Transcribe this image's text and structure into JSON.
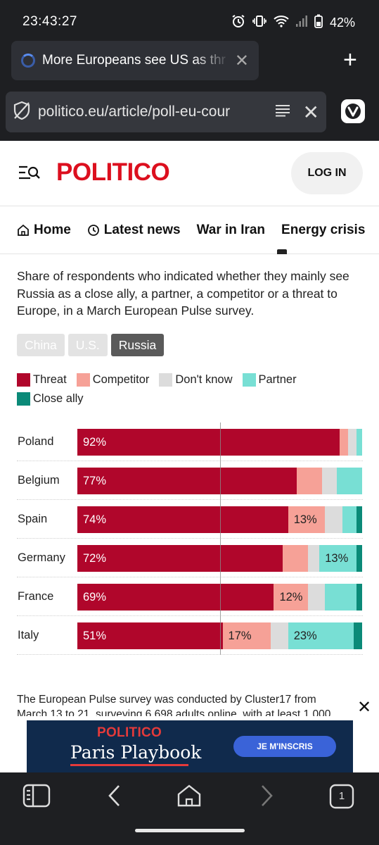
{
  "status_bar": {
    "time": "23:43:27",
    "battery": "42%"
  },
  "browser": {
    "tab_title": "More Europeans see US as thr",
    "url": "politico.eu/article/poll-eu-cour"
  },
  "site": {
    "logo": "POLITICO",
    "login": "LOG IN"
  },
  "nav": [
    {
      "label": "Home"
    },
    {
      "label": "Latest news"
    },
    {
      "label": "War in Iran"
    },
    {
      "label": "Energy crisis"
    }
  ],
  "chart_description": "Share of respondents who indicated whether they mainly see Russia as a close ally, a partner, a competitor or a threat to Europe, in a March European Pulse survey.",
  "filters": [
    {
      "label": "China",
      "active": false
    },
    {
      "label": "U.S.",
      "active": false
    },
    {
      "label": "Russia",
      "active": true
    }
  ],
  "colors": {
    "threat": "#b0062b",
    "competitor": "#f6a197",
    "dont_know": "#dcdcdc",
    "partner": "#78dfd4",
    "close_ally": "#0b8a78",
    "politico_red": "#dc0f1e"
  },
  "chart_data": {
    "type": "bar",
    "orientation": "horizontal",
    "stacked": true,
    "categories": [
      "Poland",
      "Belgium",
      "Spain",
      "Germany",
      "France",
      "Italy"
    ],
    "xlim": [
      0,
      100
    ],
    "reference_line": 50,
    "legend": [
      "Threat",
      "Competitor",
      "Don't know",
      "Partner",
      "Close ally"
    ],
    "series": [
      {
        "name": "Threat",
        "color_key": "threat",
        "values": [
          92,
          77,
          74,
          72,
          69,
          51
        ],
        "labels": [
          "92%",
          "77%",
          "74%",
          "72%",
          "69%",
          "51%"
        ]
      },
      {
        "name": "Competitor",
        "color_key": "competitor",
        "values": [
          3,
          9,
          13,
          9,
          12,
          17
        ],
        "labels": [
          "",
          "",
          "13%",
          "",
          "12%",
          "17%"
        ]
      },
      {
        "name": "Don't know",
        "color_key": "dont_know",
        "values": [
          3,
          5,
          6,
          4,
          6,
          6
        ],
        "labels": [
          "",
          "",
          "",
          "",
          "",
          ""
        ]
      },
      {
        "name": "Partner",
        "color_key": "partner",
        "values": [
          2,
          9,
          5,
          13,
          11,
          23
        ],
        "labels": [
          "",
          "",
          "",
          "13%",
          "",
          "23%"
        ]
      },
      {
        "name": "Close ally",
        "color_key": "close_ally",
        "values": [
          0,
          0,
          2,
          2,
          2,
          3
        ],
        "labels": [
          "",
          "",
          "",
          "",
          "",
          ""
        ]
      }
    ]
  },
  "footnote": "The European Pulse survey was conducted by Cluster17 from March 13 to 21, surveying 6,698 adults online, with at least 1,000",
  "ad": {
    "brand": "POLITICO",
    "product": "Paris Playbook",
    "cta": "JE M'INSCRIS"
  },
  "bottom_toolbar": {
    "tab_count": "1"
  }
}
